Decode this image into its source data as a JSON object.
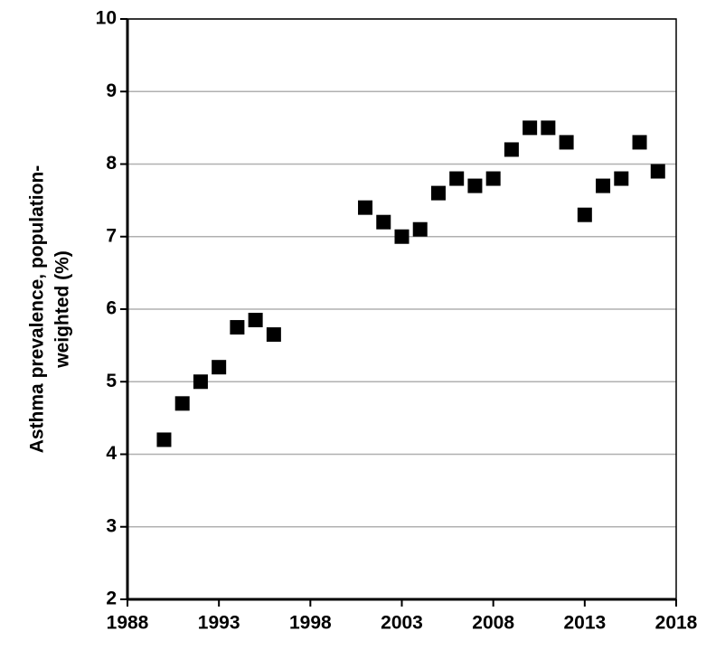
{
  "chart_data": {
    "type": "scatter",
    "ylabel": [
      "Asthma prevalence, population-",
      "weighted (%)"
    ],
    "x": [
      1990,
      1991,
      1992,
      1993,
      1994,
      1995,
      1996,
      2001,
      2002,
      2003,
      2004,
      2005,
      2006,
      2007,
      2008,
      2009,
      2010,
      2011,
      2012,
      2013,
      2014,
      2015,
      2016,
      2017
    ],
    "values": [
      4.2,
      4.7,
      5.0,
      5.2,
      5.75,
      5.85,
      5.65,
      7.4,
      7.2,
      7.0,
      7.1,
      7.6,
      7.8,
      7.7,
      7.8,
      8.2,
      8.5,
      8.5,
      8.3,
      7.3,
      7.7,
      7.8,
      8.3,
      7.9
    ],
    "color": "#000000",
    "xlim": [
      1988,
      2018
    ],
    "xticks": [
      1988,
      1993,
      1998,
      2003,
      2008,
      2013,
      2018
    ],
    "ylim": [
      2,
      10
    ],
    "yticks": [
      2,
      3,
      4,
      5,
      6,
      7,
      8,
      9,
      10
    ],
    "grid": true
  }
}
